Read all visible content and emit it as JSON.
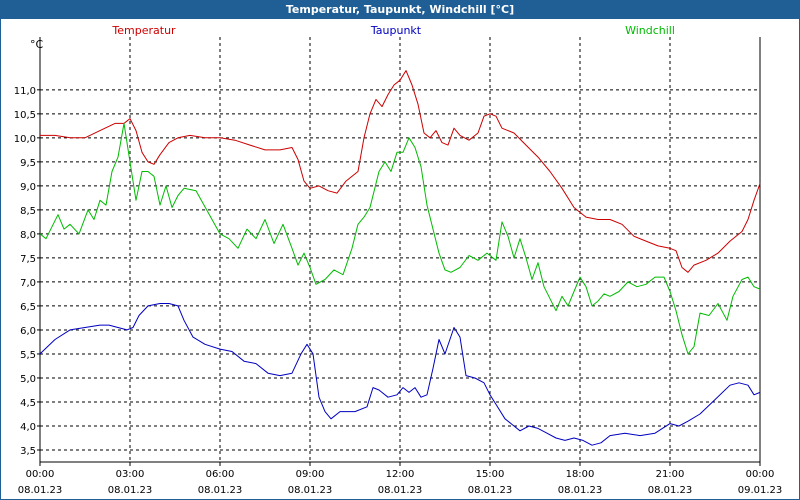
{
  "window": {
    "title": "Temperatur, Taupunkt, Windchill [°C]"
  },
  "chart_data": {
    "type": "line",
    "title": "Temperatur, Taupunkt, Windchill [°C]",
    "ylabel": "°C",
    "ylim": [
      3.25,
      12.1
    ],
    "y_ticks": [
      "3,5",
      "4,0",
      "4,5",
      "5,0",
      "5,5",
      "6,0",
      "6,5",
      "7,0",
      "7,5",
      "8,0",
      "8,5",
      "9,0",
      "9,5",
      "10,0",
      "10,5",
      "11,0"
    ],
    "xlim": [
      0,
      24
    ],
    "x_ticks": [
      {
        "time": "00:00",
        "date": "08.01.23"
      },
      {
        "time": "03:00",
        "date": "08.01.23"
      },
      {
        "time": "06:00",
        "date": "08.01.23"
      },
      {
        "time": "09:00",
        "date": "08.01.23"
      },
      {
        "time": "12:00",
        "date": "08.01.23"
      },
      {
        "time": "15:00",
        "date": "08.01.23"
      },
      {
        "time": "18:00",
        "date": "08.01.23"
      },
      {
        "time": "21:00",
        "date": "08.01.23"
      },
      {
        "time": "00:00",
        "date": "09.01.23"
      }
    ],
    "grid": true,
    "series": [
      {
        "name": "Temperatur",
        "color": "#cc0000",
        "points": [
          [
            0,
            10.05
          ],
          [
            0.5,
            10.05
          ],
          [
            1.0,
            10.0
          ],
          [
            1.5,
            10.0
          ],
          [
            2.0,
            10.15
          ],
          [
            2.5,
            10.3
          ],
          [
            2.8,
            10.3
          ],
          [
            3.0,
            10.4
          ],
          [
            3.2,
            10.15
          ],
          [
            3.4,
            9.7
          ],
          [
            3.6,
            9.5
          ],
          [
            3.8,
            9.45
          ],
          [
            4.0,
            9.65
          ],
          [
            4.3,
            9.9
          ],
          [
            4.6,
            10.0
          ],
          [
            5.0,
            10.05
          ],
          [
            5.5,
            10.0
          ],
          [
            6.0,
            10.0
          ],
          [
            6.5,
            9.95
          ],
          [
            7.0,
            9.85
          ],
          [
            7.5,
            9.75
          ],
          [
            8.0,
            9.75
          ],
          [
            8.4,
            9.8
          ],
          [
            8.6,
            9.55
          ],
          [
            8.8,
            9.1
          ],
          [
            9.0,
            8.95
          ],
          [
            9.3,
            9.0
          ],
          [
            9.6,
            8.9
          ],
          [
            9.9,
            8.85
          ],
          [
            10.2,
            9.1
          ],
          [
            10.6,
            9.3
          ],
          [
            10.8,
            10.0
          ],
          [
            11.0,
            10.5
          ],
          [
            11.2,
            10.8
          ],
          [
            11.4,
            10.65
          ],
          [
            11.6,
            10.9
          ],
          [
            11.8,
            11.1
          ],
          [
            12.0,
            11.2
          ],
          [
            12.2,
            11.4
          ],
          [
            12.4,
            11.1
          ],
          [
            12.6,
            10.7
          ],
          [
            12.8,
            10.1
          ],
          [
            13.0,
            10.0
          ],
          [
            13.2,
            10.15
          ],
          [
            13.4,
            9.9
          ],
          [
            13.6,
            9.85
          ],
          [
            13.8,
            10.2
          ],
          [
            14.0,
            10.05
          ],
          [
            14.3,
            9.95
          ],
          [
            14.6,
            10.1
          ],
          [
            14.8,
            10.45
          ],
          [
            15.0,
            10.5
          ],
          [
            15.2,
            10.45
          ],
          [
            15.4,
            10.2
          ],
          [
            15.8,
            10.1
          ],
          [
            16.2,
            9.85
          ],
          [
            16.6,
            9.6
          ],
          [
            17.0,
            9.3
          ],
          [
            17.4,
            8.95
          ],
          [
            17.8,
            8.55
          ],
          [
            18.2,
            8.35
          ],
          [
            18.6,
            8.3
          ],
          [
            19.0,
            8.3
          ],
          [
            19.4,
            8.2
          ],
          [
            19.8,
            7.95
          ],
          [
            20.2,
            7.85
          ],
          [
            20.6,
            7.75
          ],
          [
            21.0,
            7.7
          ],
          [
            21.2,
            7.65
          ],
          [
            21.4,
            7.3
          ],
          [
            21.6,
            7.2
          ],
          [
            21.8,
            7.35
          ],
          [
            22.2,
            7.45
          ],
          [
            22.6,
            7.6
          ],
          [
            23.0,
            7.85
          ],
          [
            23.4,
            8.05
          ],
          [
            23.6,
            8.3
          ],
          [
            23.8,
            8.7
          ],
          [
            24.0,
            9.05
          ]
        ]
      },
      {
        "name": "Taupunkt",
        "color": "#0000c0",
        "points": [
          [
            0,
            5.5
          ],
          [
            0.5,
            5.8
          ],
          [
            1.0,
            6.0
          ],
          [
            1.5,
            6.05
          ],
          [
            2.0,
            6.1
          ],
          [
            2.3,
            6.1
          ],
          [
            2.6,
            6.05
          ],
          [
            2.9,
            6.0
          ],
          [
            3.1,
            6.05
          ],
          [
            3.3,
            6.3
          ],
          [
            3.6,
            6.5
          ],
          [
            4.0,
            6.55
          ],
          [
            4.3,
            6.55
          ],
          [
            4.6,
            6.5
          ],
          [
            4.8,
            6.2
          ],
          [
            5.1,
            5.85
          ],
          [
            5.5,
            5.7
          ],
          [
            6.0,
            5.6
          ],
          [
            6.4,
            5.55
          ],
          [
            6.8,
            5.35
          ],
          [
            7.2,
            5.3
          ],
          [
            7.6,
            5.1
          ],
          [
            8.0,
            5.05
          ],
          [
            8.4,
            5.1
          ],
          [
            8.7,
            5.5
          ],
          [
            8.9,
            5.7
          ],
          [
            9.1,
            5.5
          ],
          [
            9.3,
            4.6
          ],
          [
            9.5,
            4.3
          ],
          [
            9.7,
            4.15
          ],
          [
            10.0,
            4.3
          ],
          [
            10.5,
            4.3
          ],
          [
            10.9,
            4.4
          ],
          [
            11.1,
            4.8
          ],
          [
            11.3,
            4.75
          ],
          [
            11.6,
            4.6
          ],
          [
            11.9,
            4.65
          ],
          [
            12.1,
            4.8
          ],
          [
            12.3,
            4.7
          ],
          [
            12.5,
            4.8
          ],
          [
            12.7,
            4.6
          ],
          [
            12.9,
            4.65
          ],
          [
            13.1,
            5.2
          ],
          [
            13.3,
            5.8
          ],
          [
            13.5,
            5.5
          ],
          [
            13.8,
            6.05
          ],
          [
            14.0,
            5.85
          ],
          [
            14.2,
            5.05
          ],
          [
            14.5,
            5.0
          ],
          [
            14.8,
            4.9
          ],
          [
            15.0,
            4.65
          ],
          [
            15.2,
            4.45
          ],
          [
            15.5,
            4.15
          ],
          [
            15.8,
            4.0
          ],
          [
            16.0,
            3.9
          ],
          [
            16.3,
            4.0
          ],
          [
            16.6,
            3.95
          ],
          [
            16.9,
            3.85
          ],
          [
            17.2,
            3.75
          ],
          [
            17.5,
            3.7
          ],
          [
            17.8,
            3.75
          ],
          [
            18.1,
            3.7
          ],
          [
            18.4,
            3.6
          ],
          [
            18.7,
            3.65
          ],
          [
            19.0,
            3.8
          ],
          [
            19.5,
            3.85
          ],
          [
            20.0,
            3.8
          ],
          [
            20.5,
            3.85
          ],
          [
            21.0,
            4.05
          ],
          [
            21.3,
            4.0
          ],
          [
            21.6,
            4.1
          ],
          [
            22.0,
            4.25
          ],
          [
            22.5,
            4.55
          ],
          [
            23.0,
            4.85
          ],
          [
            23.3,
            4.9
          ],
          [
            23.6,
            4.85
          ],
          [
            23.8,
            4.65
          ],
          [
            24.0,
            4.7
          ]
        ]
      },
      {
        "name": "Windchill",
        "color": "#00bb00",
        "points": [
          [
            0,
            8.0
          ],
          [
            0.2,
            7.9
          ],
          [
            0.4,
            8.15
          ],
          [
            0.6,
            8.4
          ],
          [
            0.8,
            8.1
          ],
          [
            1.0,
            8.2
          ],
          [
            1.3,
            8.0
          ],
          [
            1.6,
            8.5
          ],
          [
            1.8,
            8.3
          ],
          [
            2.0,
            8.7
          ],
          [
            2.2,
            8.6
          ],
          [
            2.4,
            9.3
          ],
          [
            2.6,
            9.6
          ],
          [
            2.8,
            10.3
          ],
          [
            3.0,
            9.5
          ],
          [
            3.2,
            8.7
          ],
          [
            3.4,
            9.3
          ],
          [
            3.6,
            9.3
          ],
          [
            3.8,
            9.2
          ],
          [
            4.0,
            8.6
          ],
          [
            4.2,
            9.0
          ],
          [
            4.4,
            8.55
          ],
          [
            4.6,
            8.8
          ],
          [
            4.8,
            8.95
          ],
          [
            5.2,
            8.9
          ],
          [
            5.6,
            8.45
          ],
          [
            6.0,
            8.0
          ],
          [
            6.3,
            7.9
          ],
          [
            6.6,
            7.7
          ],
          [
            6.9,
            8.1
          ],
          [
            7.2,
            7.9
          ],
          [
            7.5,
            8.3
          ],
          [
            7.8,
            7.8
          ],
          [
            8.1,
            8.2
          ],
          [
            8.4,
            7.7
          ],
          [
            8.6,
            7.35
          ],
          [
            8.8,
            7.6
          ],
          [
            9.0,
            7.3
          ],
          [
            9.2,
            6.95
          ],
          [
            9.5,
            7.05
          ],
          [
            9.8,
            7.25
          ],
          [
            10.1,
            7.15
          ],
          [
            10.4,
            7.7
          ],
          [
            10.6,
            8.2
          ],
          [
            10.8,
            8.35
          ],
          [
            11.0,
            8.55
          ],
          [
            11.3,
            9.3
          ],
          [
            11.5,
            9.5
          ],
          [
            11.7,
            9.3
          ],
          [
            11.9,
            9.7
          ],
          [
            12.1,
            9.7
          ],
          [
            12.3,
            10.0
          ],
          [
            12.5,
            9.8
          ],
          [
            12.7,
            9.4
          ],
          [
            12.9,
            8.6
          ],
          [
            13.1,
            8.1
          ],
          [
            13.3,
            7.6
          ],
          [
            13.5,
            7.25
          ],
          [
            13.7,
            7.2
          ],
          [
            14.0,
            7.3
          ],
          [
            14.3,
            7.55
          ],
          [
            14.6,
            7.45
          ],
          [
            14.9,
            7.6
          ],
          [
            15.2,
            7.45
          ],
          [
            15.4,
            8.25
          ],
          [
            15.6,
            7.95
          ],
          [
            15.8,
            7.5
          ],
          [
            16.0,
            7.9
          ],
          [
            16.2,
            7.5
          ],
          [
            16.4,
            7.05
          ],
          [
            16.6,
            7.4
          ],
          [
            16.8,
            6.9
          ],
          [
            17.0,
            6.65
          ],
          [
            17.2,
            6.4
          ],
          [
            17.4,
            6.7
          ],
          [
            17.6,
            6.5
          ],
          [
            17.8,
            6.8
          ],
          [
            18.0,
            7.1
          ],
          [
            18.2,
            6.9
          ],
          [
            18.4,
            6.5
          ],
          [
            18.6,
            6.6
          ],
          [
            18.8,
            6.75
          ],
          [
            19.0,
            6.7
          ],
          [
            19.3,
            6.8
          ],
          [
            19.6,
            7.0
          ],
          [
            19.9,
            6.9
          ],
          [
            20.2,
            6.95
          ],
          [
            20.5,
            7.1
          ],
          [
            20.8,
            7.1
          ],
          [
            21.0,
            6.8
          ],
          [
            21.2,
            6.4
          ],
          [
            21.4,
            5.9
          ],
          [
            21.6,
            5.5
          ],
          [
            21.8,
            5.65
          ],
          [
            22.0,
            6.35
          ],
          [
            22.3,
            6.3
          ],
          [
            22.6,
            6.55
          ],
          [
            22.9,
            6.2
          ],
          [
            23.1,
            6.7
          ],
          [
            23.4,
            7.05
          ],
          [
            23.6,
            7.1
          ],
          [
            23.8,
            6.9
          ],
          [
            24.0,
            6.85
          ]
        ]
      }
    ]
  }
}
